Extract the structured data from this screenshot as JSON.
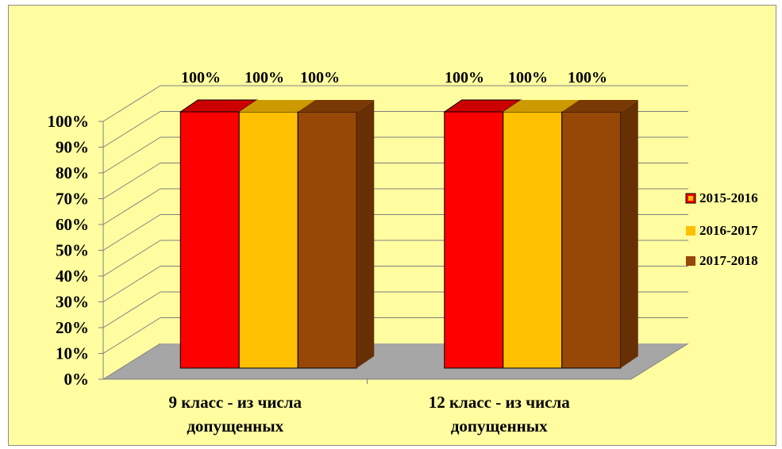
{
  "chart_data": {
    "type": "bar",
    "categories": [
      [
        "9 класс - из числа",
        "допущенных"
      ],
      [
        "12 класс - из числа",
        "допущенных"
      ]
    ],
    "series": [
      {
        "name": "2015-2016",
        "values": [
          100,
          100
        ],
        "labels": [
          "100%",
          "100%"
        ],
        "color": "#ff0000"
      },
      {
        "name": "2016-2017",
        "values": [
          100,
          100
        ],
        "labels": [
          "100%",
          "100%"
        ],
        "color": "#ffc000"
      },
      {
        "name": "2017-2018",
        "values": [
          100,
          100
        ],
        "labels": [
          "100%",
          "100%"
        ],
        "color": "#974706"
      }
    ],
    "yticks": [
      "0%",
      "10%",
      "20%",
      "30%",
      "40%",
      "50%",
      "60%",
      "70%",
      "80%",
      "90%",
      "100%"
    ],
    "ylim": [
      0,
      100
    ],
    "grid": true,
    "legend_position": "right",
    "background": "#fffda0",
    "floor_color": "#a6a6a6"
  }
}
